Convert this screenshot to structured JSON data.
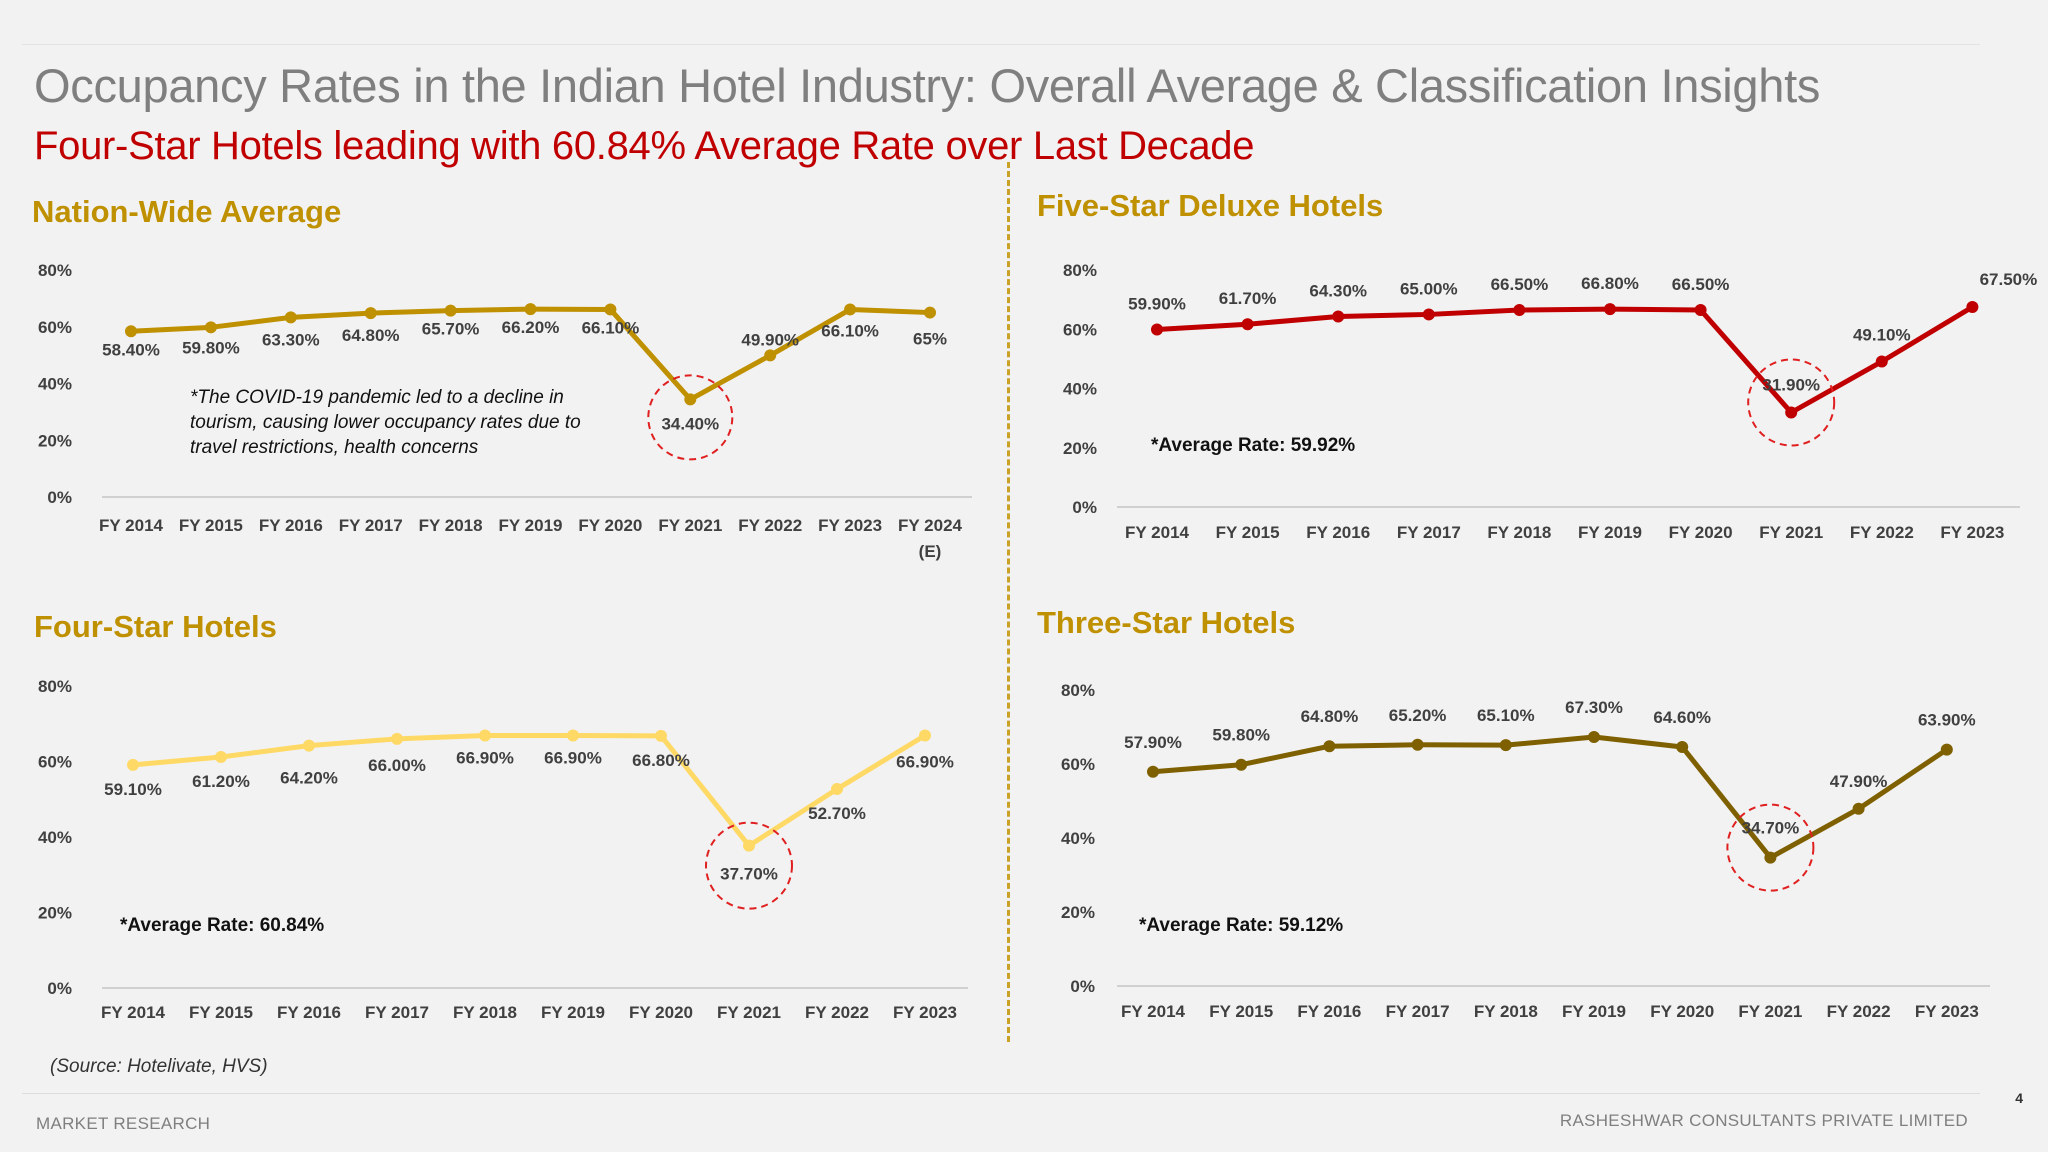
{
  "header": {
    "title": "Occupancy Rates in the Indian Hotel Industry: Overall Average & Classification Insights",
    "subtitle": "Four-Star Hotels leading with 60.84% Average Rate over Last Decade"
  },
  "footer": {
    "source": "(Source: Hotelivate, HVS)",
    "left": "MARKET RESEARCH",
    "right": "RASHESHWAR CONSULTANTS PRIVATE LIMITED",
    "page": "4"
  },
  "chart_data": [
    {
      "type": "line",
      "title": "Nation-Wide Average",
      "categories": [
        "FY 2014",
        "FY 2015",
        "FY 2016",
        "FY 2017",
        "FY 2018",
        "FY 2019",
        "FY 2020",
        "FY 2021",
        "FY 2022",
        "FY 2023",
        "FY 2024 (E)"
      ],
      "values": [
        58.4,
        59.8,
        63.3,
        64.8,
        65.7,
        66.2,
        66.1,
        34.4,
        49.9,
        66.1,
        65
      ],
      "data_labels": [
        "58.40%",
        "59.80%",
        "63.30%",
        "64.80%",
        "65.70%",
        "66.20%",
        "66.10%",
        "34.40%",
        "49.90%",
        "66.10%",
        "65%"
      ],
      "y_ticks": [
        "0%",
        "20%",
        "40%",
        "60%",
        "80%"
      ],
      "ylim": [
        0,
        80
      ],
      "color": "#bf9000",
      "highlight": "FY 2021",
      "note": [
        "*The COVID-19 pandemic led to a decline in",
        "tourism, causing lower occupancy rates due to",
        "travel restrictions, health concerns"
      ]
    },
    {
      "type": "line",
      "title": "Five-Star Deluxe Hotels",
      "categories": [
        "FY 2014",
        "FY 2015",
        "FY 2016",
        "FY 2017",
        "FY 2018",
        "FY 2019",
        "FY 2020",
        "FY 2021",
        "FY 2022",
        "FY 2023"
      ],
      "values": [
        59.9,
        61.7,
        64.3,
        65.0,
        66.5,
        66.8,
        66.5,
        31.9,
        49.1,
        67.5
      ],
      "data_labels": [
        "59.90%",
        "61.70%",
        "64.30%",
        "65.00%",
        "66.50%",
        "66.80%",
        "66.50%",
        "31.90%",
        "49.10%",
        "67.50%"
      ],
      "y_ticks": [
        "0%",
        "20%",
        "40%",
        "60%",
        "80%"
      ],
      "ylim": [
        0,
        80
      ],
      "color": "#c00000",
      "highlight": "FY 2021",
      "average_label": "*Average Rate: 59.92%"
    },
    {
      "type": "line",
      "title": "Four-Star Hotels",
      "categories": [
        "FY 2014",
        "FY 2015",
        "FY 2016",
        "FY 2017",
        "FY 2018",
        "FY 2019",
        "FY 2020",
        "FY 2021",
        "FY 2022",
        "FY 2023"
      ],
      "values": [
        59.1,
        61.2,
        64.2,
        66.0,
        66.9,
        66.9,
        66.8,
        37.7,
        52.7,
        66.9
      ],
      "data_labels": [
        "59.10%",
        "61.20%",
        "64.20%",
        "66.00%",
        "66.90%",
        "66.90%",
        "66.80%",
        "37.70%",
        "52.70%",
        "66.90%"
      ],
      "y_ticks": [
        "0%",
        "20%",
        "40%",
        "60%",
        "80%"
      ],
      "ylim": [
        0,
        80
      ],
      "color": "#ffd966",
      "highlight": "FY 2021",
      "average_label": "*Average Rate: 60.84%"
    },
    {
      "type": "line",
      "title": "Three-Star Hotels",
      "categories": [
        "FY 2014",
        "FY 2015",
        "FY 2016",
        "FY 2017",
        "FY 2018",
        "FY 2019",
        "FY 2020",
        "FY 2021",
        "FY 2022",
        "FY 2023"
      ],
      "values": [
        57.9,
        59.8,
        64.8,
        65.2,
        65.1,
        67.3,
        64.6,
        34.7,
        47.9,
        63.9
      ],
      "data_labels": [
        "57.90%",
        "59.80%",
        "64.80%",
        "65.20%",
        "65.10%",
        "67.30%",
        "64.60%",
        "34.70%",
        "47.90%",
        "63.90%"
      ],
      "y_ticks": [
        "0%",
        "20%",
        "40%",
        "60%",
        "80%"
      ],
      "ylim": [
        0,
        80
      ],
      "color": "#7f6000",
      "highlight": "FY 2021",
      "average_label": "*Average Rate: 59.12%"
    }
  ]
}
